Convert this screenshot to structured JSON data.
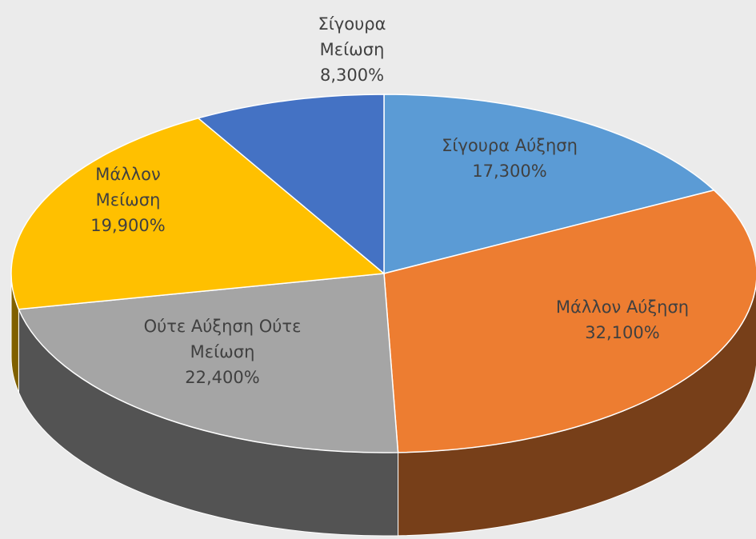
{
  "chart_data": {
    "type": "pie3d",
    "categories": [
      "Σίγουρα Αύξηση",
      "Μάλλον Αύξηση",
      "Ούτε Αύξηση Ούτε Μείωση",
      "Μάλλον Μείωση",
      "Σίγουρα Μείωση"
    ],
    "values": [
      17.3,
      32.1,
      22.4,
      19.9,
      8.3
    ],
    "value_labels": [
      "17,300%",
      "32,100%",
      "22,400%",
      "19,900%",
      "8,300%"
    ],
    "colors": [
      "#5b9bd5",
      "#ed7d31",
      "#a5a5a5",
      "#ffc000",
      "#4472c4"
    ]
  }
}
